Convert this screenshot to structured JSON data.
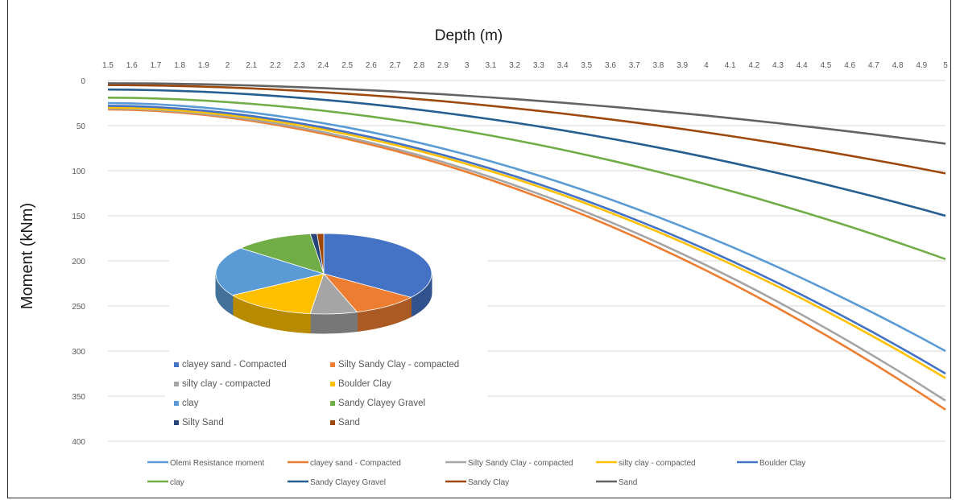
{
  "chart_data": {
    "type": "line",
    "title": "Depth (m)",
    "xlabel": "",
    "ylabel": "Moment (kNm)",
    "x": [
      1.5,
      1.6,
      1.7,
      1.8,
      1.9,
      2,
      2.1,
      2.2,
      2.3,
      2.4,
      2.5,
      2.6,
      2.7,
      2.8,
      2.9,
      3,
      3.1,
      3.2,
      3.3,
      3.4,
      3.5,
      3.6,
      3.7,
      3.8,
      3.9,
      4,
      4.1,
      4.2,
      4.3,
      4.4,
      4.5,
      4.6,
      4.7,
      4.8,
      4.9,
      5
    ],
    "x_tick_labels": [
      "1.5",
      "1.6",
      "1.7",
      "1.8",
      "1.9",
      "2",
      "2.1",
      "2.2",
      "2.3",
      "2.4",
      "2.5",
      "2.6",
      "2.7",
      "2.8",
      "2.9",
      "3",
      "3.1",
      "3.2",
      "3.3",
      "3.4",
      "3.5",
      "3.6",
      "3.7",
      "3.8",
      "3.9",
      "4",
      "4.1",
      "4.2",
      "4.3",
      "4.4",
      "4.5",
      "4.6",
      "4.7",
      "4.8",
      "4.9",
      "5"
    ],
    "x_axis_position": "top",
    "y_reversed": true,
    "ylim": [
      0,
      400
    ],
    "y_ticks": [
      0,
      50,
      100,
      150,
      200,
      250,
      300,
      350,
      400
    ],
    "grid": true,
    "legend_position": "bottom",
    "series": [
      {
        "name": "Olemi Resistance moment",
        "color": "#5b9bd5",
        "start": 25,
        "end": 300
      },
      {
        "name": "clayey sand - Compacted",
        "color": "#ed7d31",
        "start": 32,
        "end": 365
      },
      {
        "name": "Silty Sandy Clay - compacted",
        "color": "#a5a5a5",
        "start": 31,
        "end": 355
      },
      {
        "name": "silty clay - compacted",
        "color": "#ffc000",
        "start": 30,
        "end": 330
      },
      {
        "name": "Boulder Clay",
        "color": "#4472c4",
        "start": 28,
        "end": 325
      },
      {
        "name": "clay",
        "color": "#70ad47",
        "start": 19,
        "end": 198
      },
      {
        "name": "Sandy Clayey Gravel",
        "color": "#255e91",
        "start": 10,
        "end": 150
      },
      {
        "name": "Sandy Clay",
        "color": "#9e480e",
        "start": 5,
        "end": 103
      },
      {
        "name": "Sand",
        "color": "#636363",
        "start": 3,
        "end": 70
      }
    ],
    "inset_pie": {
      "type": "pie",
      "slices": [
        {
          "name": "clayey sand - Compacted",
          "value": 35,
          "color": "#4472c4"
        },
        {
          "name": "Silty Sandy Clay - compacted",
          "value": 10,
          "color": "#ed7d31"
        },
        {
          "name": "silty clay - compacted",
          "value": 7,
          "color": "#a5a5a5"
        },
        {
          "name": "Boulder Clay",
          "value": 14,
          "color": "#ffc000"
        },
        {
          "name": "clay",
          "value": 20,
          "color": "#5b9bd5"
        },
        {
          "name": "Sandy Clayey Gravel",
          "value": 12,
          "color": "#70ad47"
        },
        {
          "name": "Silty Sand",
          "value": 1,
          "color": "#264478"
        },
        {
          "name": "Sand",
          "value": 1,
          "color": "#9e480e"
        }
      ]
    }
  }
}
